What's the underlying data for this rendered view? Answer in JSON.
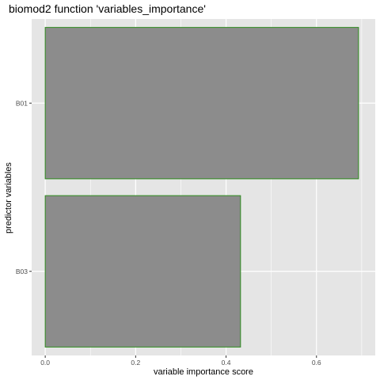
{
  "chart_data": {
    "type": "bar",
    "orientation": "horizontal",
    "title": "biomod2 function 'variables_importance'",
    "xlabel": "variable importance score",
    "ylabel": "predictor variables",
    "categories": [
      "B01",
      "B03"
    ],
    "values": [
      0.693,
      0.432
    ],
    "xlim": [
      -0.03,
      0.73
    ],
    "xticks": [
      0.0,
      0.2,
      0.4,
      0.6
    ],
    "xtick_labels": [
      "0.0",
      "0.2",
      "0.4",
      "0.6"
    ],
    "grid": true,
    "legend": "none",
    "colors": {
      "panel_background": "#e5e5e5",
      "grid_line": "#ffffff",
      "bar_fill": "#8c8c8c",
      "bar_outline": "#2e8b1e",
      "tick_text": "#4d4d4d"
    }
  }
}
